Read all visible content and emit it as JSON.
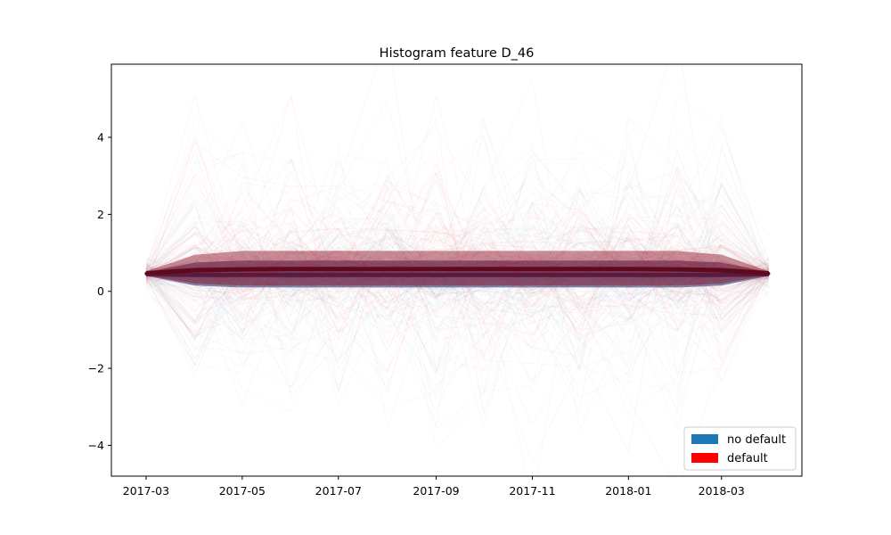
{
  "chart_data": {
    "type": "line",
    "title": "Histogram feature D_46",
    "xlabel": "",
    "ylabel": "",
    "x_axis_type": "date",
    "xlim": [
      "2017-02-07",
      "2018-04-21"
    ],
    "ylim": [
      -4.8,
      5.9
    ],
    "x_ticks": [
      "2017-03",
      "2017-05",
      "2017-07",
      "2017-09",
      "2017-11",
      "2018-01",
      "2018-03"
    ],
    "y_ticks": [
      {
        "value": -4,
        "label": "−4"
      },
      {
        "value": -2,
        "label": "−2"
      },
      {
        "value": 0,
        "label": "0"
      },
      {
        "value": 2,
        "label": "2"
      },
      {
        "value": 4,
        "label": "4"
      }
    ],
    "grid": false,
    "legend": {
      "position": "lower-right",
      "entries": [
        {
          "label": "no default",
          "color": "#1f77b4"
        },
        {
          "label": "default",
          "color": "#ff0000"
        }
      ]
    },
    "series": [
      {
        "name": "no default",
        "color": "#1f77b4",
        "x": [
          "2017-03-01",
          "2017-04-01",
          "2017-05-01",
          "2017-06-01",
          "2017-07-01",
          "2017-08-01",
          "2017-09-01",
          "2017-10-01",
          "2017-11-01",
          "2017-12-01",
          "2018-01-01",
          "2018-02-01",
          "2018-03-01",
          "2018-03-31"
        ],
        "median": [
          0.45,
          0.43,
          0.43,
          0.43,
          0.43,
          0.43,
          0.43,
          0.43,
          0.43,
          0.43,
          0.43,
          0.43,
          0.43,
          0.45
        ],
        "band_low": [
          0.4,
          0.15,
          0.1,
          0.1,
          0.1,
          0.1,
          0.1,
          0.1,
          0.1,
          0.1,
          0.1,
          0.1,
          0.15,
          0.4
        ],
        "band_high": [
          0.5,
          0.75,
          0.8,
          0.8,
          0.8,
          0.8,
          0.8,
          0.8,
          0.8,
          0.8,
          0.8,
          0.8,
          0.75,
          0.5
        ]
      },
      {
        "name": "default",
        "color": "#ff0000",
        "x": [
          "2017-03-01",
          "2017-04-01",
          "2017-05-01",
          "2017-06-01",
          "2017-07-01",
          "2017-08-01",
          "2017-09-01",
          "2017-10-01",
          "2017-11-01",
          "2017-12-01",
          "2018-01-01",
          "2018-02-01",
          "2018-03-01",
          "2018-03-31"
        ],
        "median": [
          0.47,
          0.55,
          0.57,
          0.58,
          0.58,
          0.58,
          0.58,
          0.58,
          0.58,
          0.58,
          0.58,
          0.57,
          0.55,
          0.47
        ],
        "band_low": [
          0.42,
          0.2,
          0.15,
          0.15,
          0.15,
          0.15,
          0.15,
          0.15,
          0.15,
          0.15,
          0.15,
          0.15,
          0.2,
          0.42
        ],
        "band_high": [
          0.52,
          0.95,
          1.05,
          1.05,
          1.05,
          1.05,
          1.05,
          1.05,
          1.05,
          1.05,
          1.05,
          1.05,
          0.95,
          0.52
        ]
      }
    ]
  }
}
